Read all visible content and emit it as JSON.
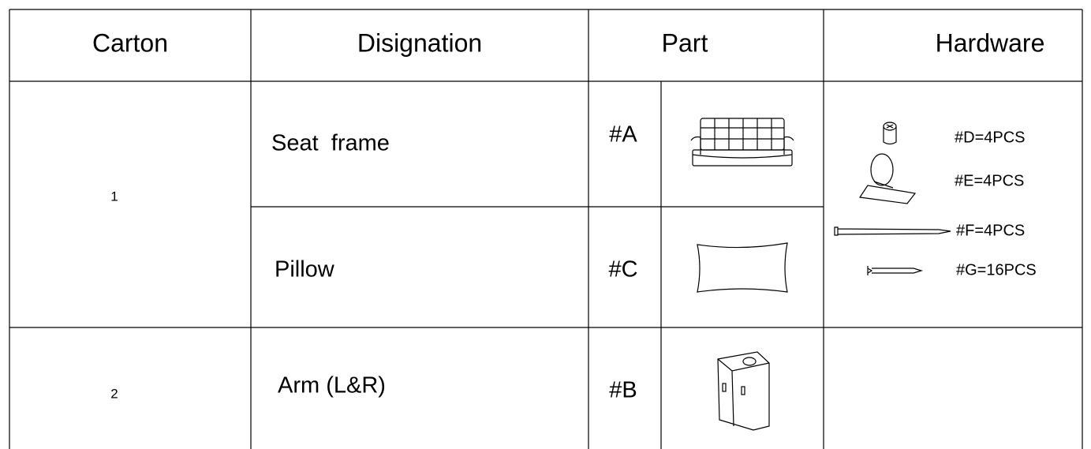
{
  "table": {
    "columns": [
      "Carton",
      "Disignation",
      "Part",
      "Hardware"
    ],
    "cartons": [
      {
        "number": "1",
        "items": [
          {
            "designation": "Seat  frame",
            "part": "#A"
          },
          {
            "designation": "Pillow",
            "part": "#C"
          }
        ]
      },
      {
        "number": "2",
        "items": [
          {
            "designation": "Arm (L&R)",
            "part": "#B"
          }
        ]
      }
    ],
    "hardware": [
      "#D=4PCS",
      "#E=4PCS",
      "#F=4PCS",
      "#G=16PCS"
    ]
  }
}
